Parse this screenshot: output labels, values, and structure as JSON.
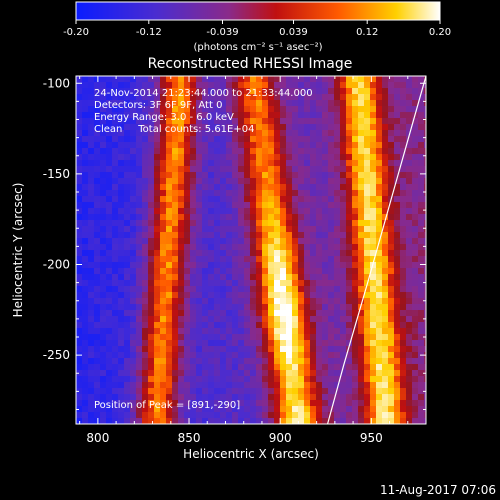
{
  "chart_data": {
    "type": "heatmap",
    "title": "Reconstructed RHESSI Image",
    "xlabel": "Heliocentric X (arcsec)",
    "ylabel": "Heliocentric Y (arcsec)",
    "xlim": [
      788,
      980
    ],
    "ylim": [
      -288,
      -96
    ],
    "x_ticks": [
      800,
      850,
      900,
      950
    ],
    "y_ticks": [
      -100,
      -150,
      -200,
      -250
    ],
    "colorbar": {
      "unit_label": "(photons cm⁻² s⁻¹ asec⁻²)",
      "range": [
        -0.2,
        0.2
      ],
      "ticks": [
        "-0.20",
        "-0.12",
        "-0.039",
        "0.039",
        "0.12",
        "0.20"
      ],
      "colormap": "blue-purple-red-orange-yellow-white"
    },
    "annotations": [
      "24-Nov-2014 21:23:44.000 to 21:33:44.000",
      "Detectors: 3F 6F 9F, Att 0",
      "Energy Range: 3.0 - 6.0 keV",
      "Clean     Total counts: 5.61E+04"
    ],
    "peak_text": "Position of Peak = [891,-290]",
    "peak": [
      891,
      -290
    ],
    "footer_date": "11-Aug-2017 07:06",
    "ridges": [
      {
        "name": "left",
        "x_at_top": 845,
        "x_at_bottom": 832,
        "peak_level": 0.13
      },
      {
        "name": "center",
        "x_at_top": 885,
        "x_at_bottom": 910,
        "peak_level": 0.2
      },
      {
        "name": "right",
        "x_at_top": 943,
        "x_at_bottom": 958,
        "peak_level": 0.12
      }
    ],
    "limb_curve": [
      [
        980,
        -96
      ],
      [
        962,
        -160
      ],
      [
        948,
        -210
      ],
      [
        935,
        -255
      ],
      [
        926,
        -288
      ]
    ]
  }
}
